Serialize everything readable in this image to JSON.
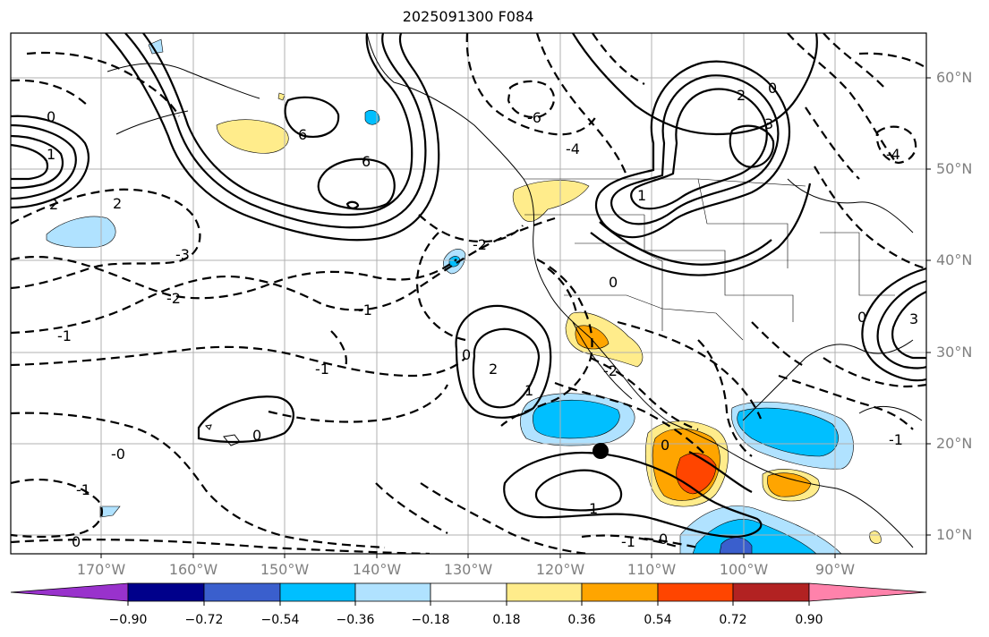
{
  "title": "2025091300 F084",
  "lat_labels": [
    "60°N",
    "50°N",
    "40°N",
    "30°N",
    "20°N",
    "10°N"
  ],
  "lon_labels": [
    "170°W",
    "160°W",
    "150°W",
    "140°W",
    "130°W",
    "120°W",
    "110°W",
    "100°W",
    "90°W"
  ],
  "colorbar": {
    "ticks": [
      "−0.90",
      "−0.72",
      "−0.54",
      "−0.36",
      "−0.18",
      "0.18",
      "0.36",
      "0.54",
      "0.72",
      "0.90"
    ],
    "colors": [
      "#9932cc",
      "#00008b",
      "#3a5fcd",
      "#00bfff",
      "#b0e2ff",
      "#ffffff",
      "#ffec8b",
      "#ffa500",
      "#ff4500",
      "#b22222",
      "#ff82ab"
    ]
  },
  "contour_labels": [
    {
      "text": "0"
    },
    {
      "text": "1"
    },
    {
      "text": "2"
    },
    {
      "text": "-1"
    },
    {
      "text": "6"
    },
    {
      "text": "6"
    },
    {
      "text": "2"
    },
    {
      "text": "-3"
    },
    {
      "text": "-2"
    },
    {
      "text": "-1"
    },
    {
      "text": "0"
    },
    {
      "text": "-1"
    },
    {
      "text": "-0"
    },
    {
      "text": "2"
    },
    {
      "text": "-1"
    },
    {
      "text": "0"
    },
    {
      "text": "0"
    },
    {
      "text": "1"
    },
    {
      "text": "0"
    },
    {
      "text": "-1"
    },
    {
      "text": "0"
    },
    {
      "text": "-6"
    },
    {
      "text": "-4"
    },
    {
      "text": "2"
    },
    {
      "text": "3"
    },
    {
      "text": "1"
    },
    {
      "text": "0"
    },
    {
      "text": "-2"
    },
    {
      "text": "0"
    },
    {
      "text": "-4"
    },
    {
      "text": "0"
    },
    {
      "text": "1"
    },
    {
      "text": "-1"
    },
    {
      "text": "3"
    },
    {
      "text": "-2"
    }
  ]
}
